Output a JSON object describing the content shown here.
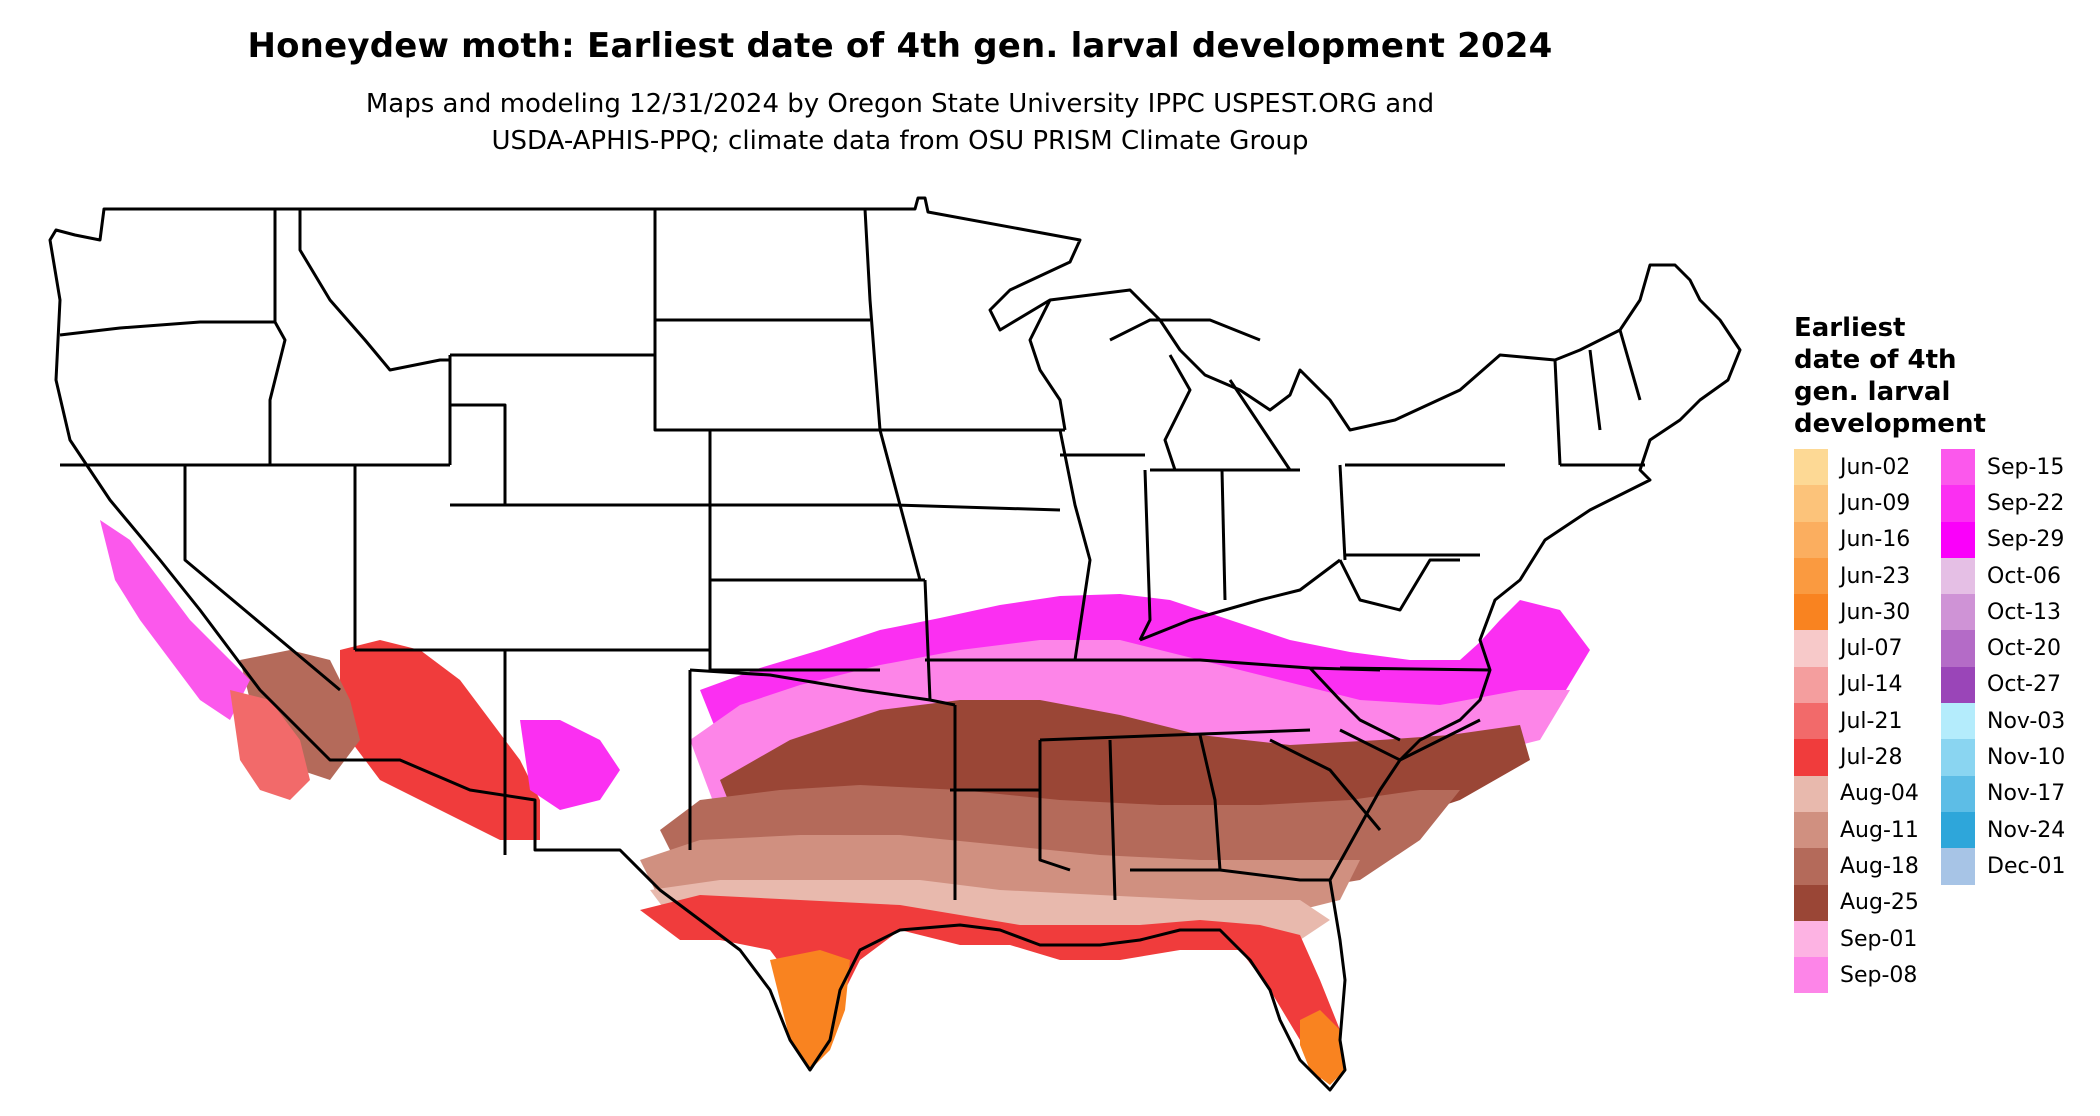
{
  "title": "Honeydew moth: Earliest date of 4th gen. larval development 2024",
  "subtitle_line1": "Maps and modeling 12/31/2024 by Oregon State University IPPC USPEST.ORG and",
  "subtitle_line2": "USDA-APHIS-PPQ; climate data from OSU PRISM Climate Group",
  "legend": {
    "title_lines": [
      "Earliest",
      "date of 4th",
      "gen. larval",
      "development"
    ],
    "columns": [
      [
        {
          "label": "Jun-02",
          "color": "#fdd995"
        },
        {
          "label": "Jun-09",
          "color": "#fcc37a"
        },
        {
          "label": "Jun-16",
          "color": "#fbae5f"
        },
        {
          "label": "Jun-23",
          "color": "#fa9a40"
        },
        {
          "label": "Jun-30",
          "color": "#f98320"
        },
        {
          "label": "Jul-07",
          "color": "#f7c9c9"
        },
        {
          "label": "Jul-14",
          "color": "#f49e9e"
        },
        {
          "label": "Jul-21",
          "color": "#f26a6a"
        },
        {
          "label": "Jul-28",
          "color": "#f03c3c"
        },
        {
          "label": "Aug-04",
          "color": "#e8b9ad"
        },
        {
          "label": "Aug-11",
          "color": "#d09080"
        },
        {
          "label": "Aug-18",
          "color": "#b46a5a"
        },
        {
          "label": "Aug-25",
          "color": "#9a4636"
        },
        {
          "label": "Sep-01",
          "color": "#fdb3e3"
        },
        {
          "label": "Sep-08",
          "color": "#fd85e8"
        }
      ],
      [
        {
          "label": "Sep-15",
          "color": "#fb58ec"
        },
        {
          "label": "Sep-22",
          "color": "#fb2ff2"
        },
        {
          "label": "Sep-29",
          "color": "#fa00fa"
        },
        {
          "label": "Oct-06",
          "color": "#e5bfe5"
        },
        {
          "label": "Oct-13",
          "color": "#cf93d6"
        },
        {
          "label": "Oct-20",
          "color": "#b46bc7"
        },
        {
          "label": "Oct-27",
          "color": "#9a45b8"
        },
        {
          "label": "Nov-03",
          "color": "#b4ecfc"
        },
        {
          "label": "Nov-10",
          "color": "#8ad5f1"
        },
        {
          "label": "Nov-17",
          "color": "#5dbde6"
        },
        {
          "label": "Nov-24",
          "color": "#2ea6da"
        },
        {
          "label": "Dec-01",
          "color": "#a7c4e6"
        }
      ]
    ]
  }
}
